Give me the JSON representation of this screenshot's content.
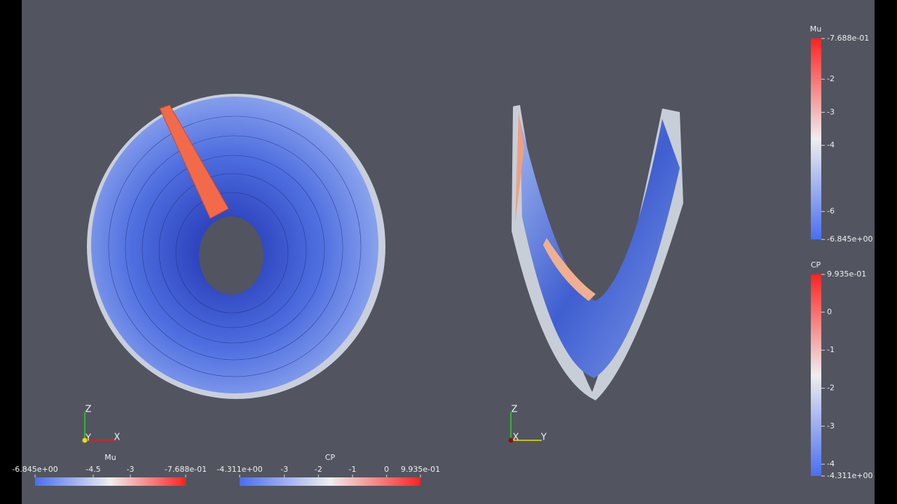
{
  "color_bars": [
    {
      "title": "Mu",
      "ticks": [
        {
          "value": -6.845,
          "label": "-6.845e+00"
        },
        -4.5,
        -3,
        {
          "value": -0.7688,
          "label": "-7.688e-01"
        }
      ]
    },
    {
      "title": "CP",
      "ticks": [
        {
          "value": -4.311,
          "label": "-4.311e+00"
        },
        -3,
        -2,
        -1,
        0,
        {
          "value": 0.9935,
          "label": "9.935e-01"
        }
      ]
    },
    {
      "title": "Mu",
      "ticks": [
        {
          "value": -0.7688,
          "label": "-7.688e-01"
        },
        -2,
        -3,
        -4,
        -6,
        {
          "value": -6.845,
          "label": "-6.845e+00"
        }
      ]
    },
    {
      "title": "CP",
      "ticks": [
        {
          "value": 0.9935,
          "label": "9.935e-01"
        },
        0,
        -1,
        -2,
        -3,
        -4,
        {
          "value": -4.311,
          "label": "-4.311e+00"
        }
      ]
    }
  ],
  "axes_widgets": [
    {
      "labels": [
        "Z",
        "Y",
        "X"
      ]
    },
    {
      "labels": [
        "Z",
        "X",
        "Y"
      ]
    }
  ]
}
